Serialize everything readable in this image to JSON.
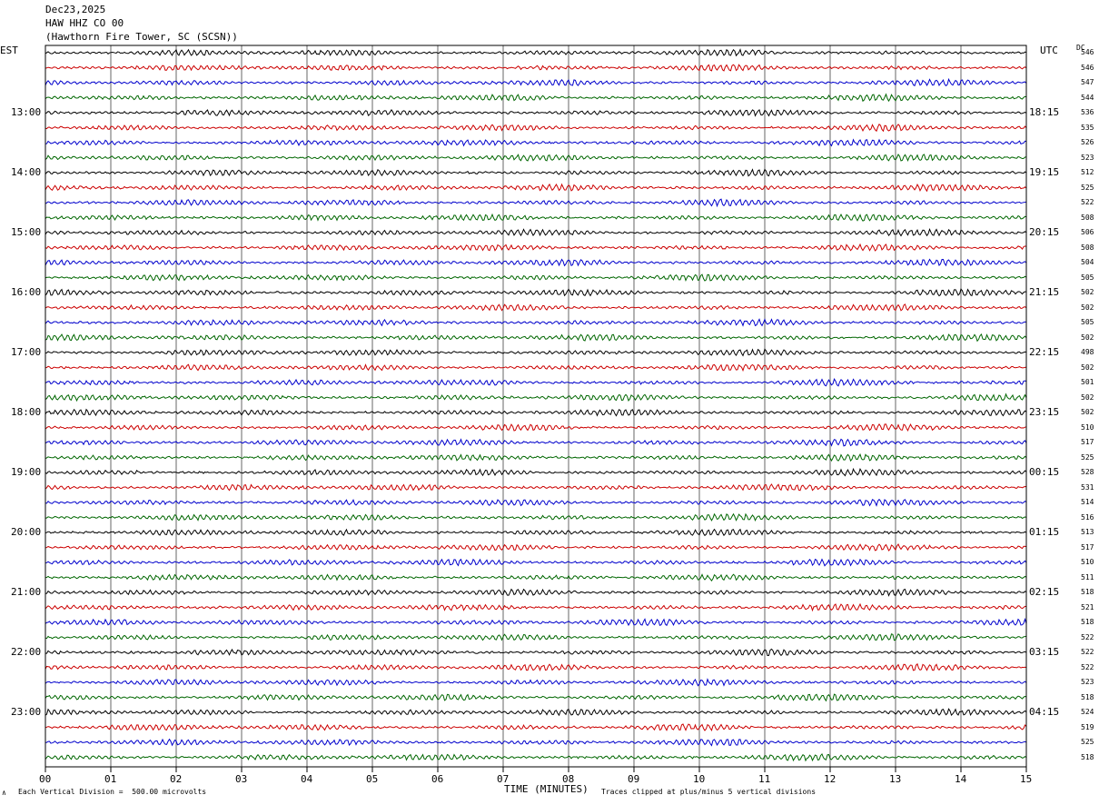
{
  "header": {
    "date": "Dec23,2025",
    "channel": "HAW HHZ CO 00",
    "station": "(Hawthorn Fire Tower, SC (SCSN))"
  },
  "left_axis_label": "EST",
  "right_axis_label": "UTC",
  "dc_label": "DC",
  "footer": {
    "scale_mark": "∧",
    "division_note": "Each Vertical Division =  500.00 microvolts",
    "clip_note": "Traces clipped at plus/minus 5 vertical divisions"
  },
  "colors": {
    "trace_cycle": [
      "#000000",
      "#cc0000",
      "#0000cc",
      "#006600"
    ],
    "grid": "#000000"
  },
  "chart_data": {
    "type": "line",
    "title": "HAW HHZ CO 00",
    "xlabel": "TIME (MINUTES)",
    "ylabel": "",
    "x_ticks": [
      "00",
      "01",
      "02",
      "03",
      "04",
      "05",
      "06",
      "07",
      "08",
      "09",
      "10",
      "11",
      "12",
      "13",
      "14",
      "15"
    ],
    "xlim": [
      0,
      15
    ],
    "grid": "vertical lines each minute",
    "left_time_labels": [
      "13:00",
      "14:00",
      "15:00",
      "16:00",
      "17:00",
      "18:00",
      "19:00",
      "20:00",
      "21:00",
      "22:00",
      "23:00"
    ],
    "right_time_labels": [
      "18:15",
      "19:15",
      "20:15",
      "21:15",
      "22:15",
      "23:15",
      "00:15",
      "01:15",
      "02:15",
      "03:15",
      "04:15"
    ],
    "dc_offsets": [
      "546",
      "546",
      "547",
      "544",
      "536",
      "535",
      "526",
      "523",
      "512",
      "525",
      "522",
      "508",
      "506",
      "508",
      "504",
      "505",
      "502",
      "502",
      "505",
      "502",
      "498",
      "502",
      "501",
      "502",
      "502",
      "510",
      "517",
      "525",
      "528",
      "531",
      "514",
      "516",
      "513",
      "517",
      "510",
      "511",
      "518",
      "521",
      "518",
      "522",
      "522",
      "522",
      "523",
      "518",
      "524",
      "519",
      "525",
      "518"
    ],
    "series_count": 48,
    "minutes_per_trace": 15
  }
}
